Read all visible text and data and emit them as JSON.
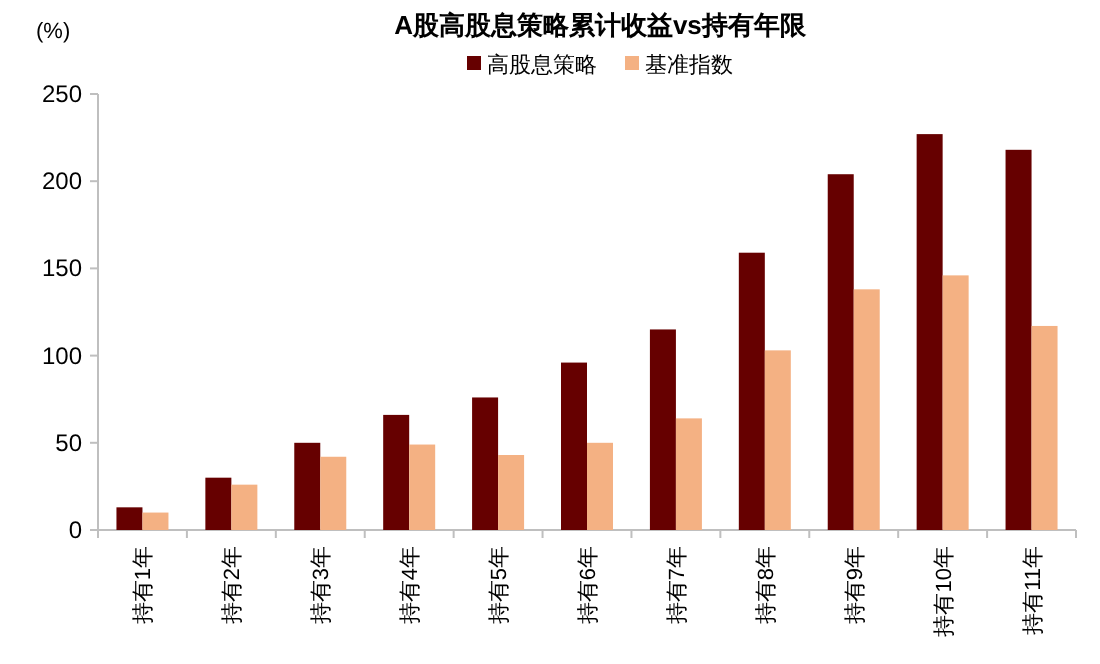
{
  "chart_data": {
    "type": "bar",
    "title": "A股高股息策略累计收益vs持有年限",
    "ylabel": "(%)",
    "categories": [
      "持有1年",
      "持有2年",
      "持有3年",
      "持有4年",
      "持有5年",
      "持有6年",
      "持有7年",
      "持有8年",
      "持有9年",
      "持有10年",
      "持有11年"
    ],
    "series": [
      {
        "name": "高股息策略",
        "color": "#660000",
        "values": [
          13,
          30,
          50,
          66,
          76,
          96,
          115,
          159,
          204,
          227,
          218
        ]
      },
      {
        "name": "基准指数",
        "color": "#f4b183",
        "values": [
          10,
          26,
          42,
          49,
          43,
          50,
          64,
          103,
          138,
          146,
          117
        ]
      }
    ],
    "ylim": [
      0,
      250
    ],
    "yticks": [
      0,
      50,
      100,
      150,
      200,
      250
    ],
    "grid": false,
    "legend": "top"
  }
}
